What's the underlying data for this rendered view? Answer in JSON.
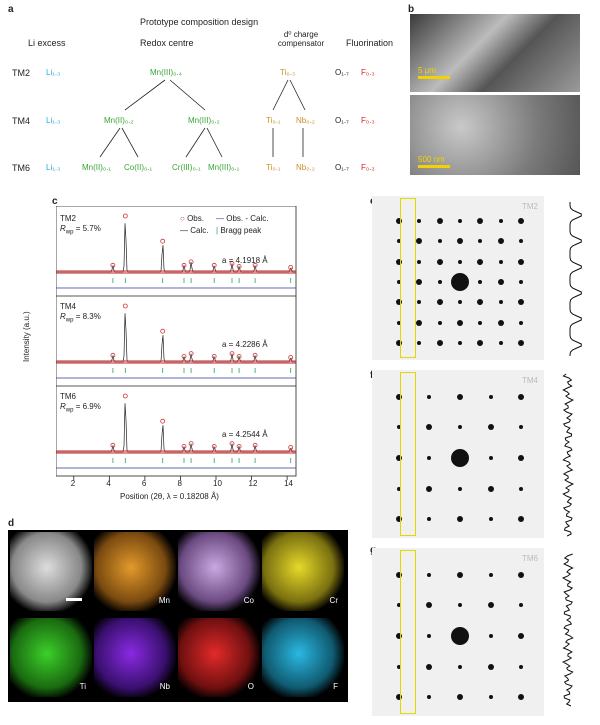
{
  "panels": {
    "a": "a",
    "b": "b",
    "c": "c",
    "d": "d",
    "e": "e",
    "f": "f",
    "g": "g"
  },
  "a": {
    "title": "Prototype composition design",
    "headers": {
      "li": "Li excess",
      "redox": "Redox centre",
      "d0": "d⁰ charge\ncompensator",
      "fluor": "Fluorination"
    },
    "rows": [
      {
        "name": "TM2",
        "li": "Li₁.₃",
        "redox": [
          "Mn(III)₀.₄"
        ],
        "d0": [
          "Ti₀.₃"
        ],
        "o": "O₁.₇",
        "f": "F₀.₃"
      },
      {
        "name": "TM4",
        "li": "Li₁.₃",
        "redox": [
          "Mn(II)₀.₂",
          "Mn(III)₀.₂"
        ],
        "d0": [
          "Ti₀.₁",
          "Nb₀.₂"
        ],
        "o": "O₁.₇",
        "f": "F₀.₃"
      },
      {
        "name": "TM6",
        "li": "Li₁.₃",
        "redox": [
          "Mn(II)₀.₁",
          "Co(II)₀.₁",
          "Cr(III)₀.₁",
          "Mn(III)₀.₁"
        ],
        "d0": [
          "Ti₀.₁",
          "Nb₀.₂"
        ],
        "o": "O₁.₇",
        "f": "F₀.₃"
      }
    ]
  },
  "b": {
    "scale_top": "5 μm",
    "scale_bottom": "500 nm"
  },
  "c": {
    "ylabel": "Intensity (a.u.)",
    "xlabel": "Position (2θ, λ = 0.18208 Å)",
    "legend": [
      "Obs.",
      "Obs. - Calc.",
      "Calc.",
      "Bragg peak"
    ],
    "xticks": [
      "2",
      "4",
      "6",
      "8",
      "10",
      "12",
      "14"
    ],
    "subplots": [
      {
        "name": "TM2",
        "rwp": "= 5.7%",
        "a": "a = 4.1918 Å"
      },
      {
        "name": "TM4",
        "rwp": "= 8.3%",
        "a": "a = 4.2286 Å"
      },
      {
        "name": "TM6",
        "rwp": "= 6.9%",
        "a": "a = 4.2544 Å"
      }
    ]
  },
  "d": {
    "elements": [
      "Mn",
      "Co",
      "Cr",
      "Ti",
      "Nb",
      "O",
      "F"
    ]
  },
  "ef": {
    "e": "TM2",
    "f": "TM4",
    "g": "TM6"
  },
  "chart_data": {
    "type": "line",
    "xlabel": "Position (2θ, λ = 0.18208 Å)",
    "ylabel": "Intensity (a.u.)",
    "xlim": [
      1,
      14.5
    ],
    "peaks_x": [
      4.2,
      4.9,
      7.0,
      8.2,
      8.6,
      9.9,
      10.9,
      11.3,
      12.2,
      14.2
    ],
    "series": [
      {
        "name": "TM2",
        "peak_heights": [
          0.12,
          1.0,
          0.55,
          0.12,
          0.18,
          0.12,
          0.15,
          0.1,
          0.12,
          0.08
        ]
      },
      {
        "name": "TM4",
        "peak_heights": [
          0.12,
          1.0,
          0.55,
          0.1,
          0.15,
          0.1,
          0.15,
          0.1,
          0.12,
          0.08
        ]
      },
      {
        "name": "TM6",
        "peak_heights": [
          0.12,
          1.0,
          0.55,
          0.1,
          0.15,
          0.1,
          0.15,
          0.1,
          0.12,
          0.08
        ]
      }
    ]
  }
}
